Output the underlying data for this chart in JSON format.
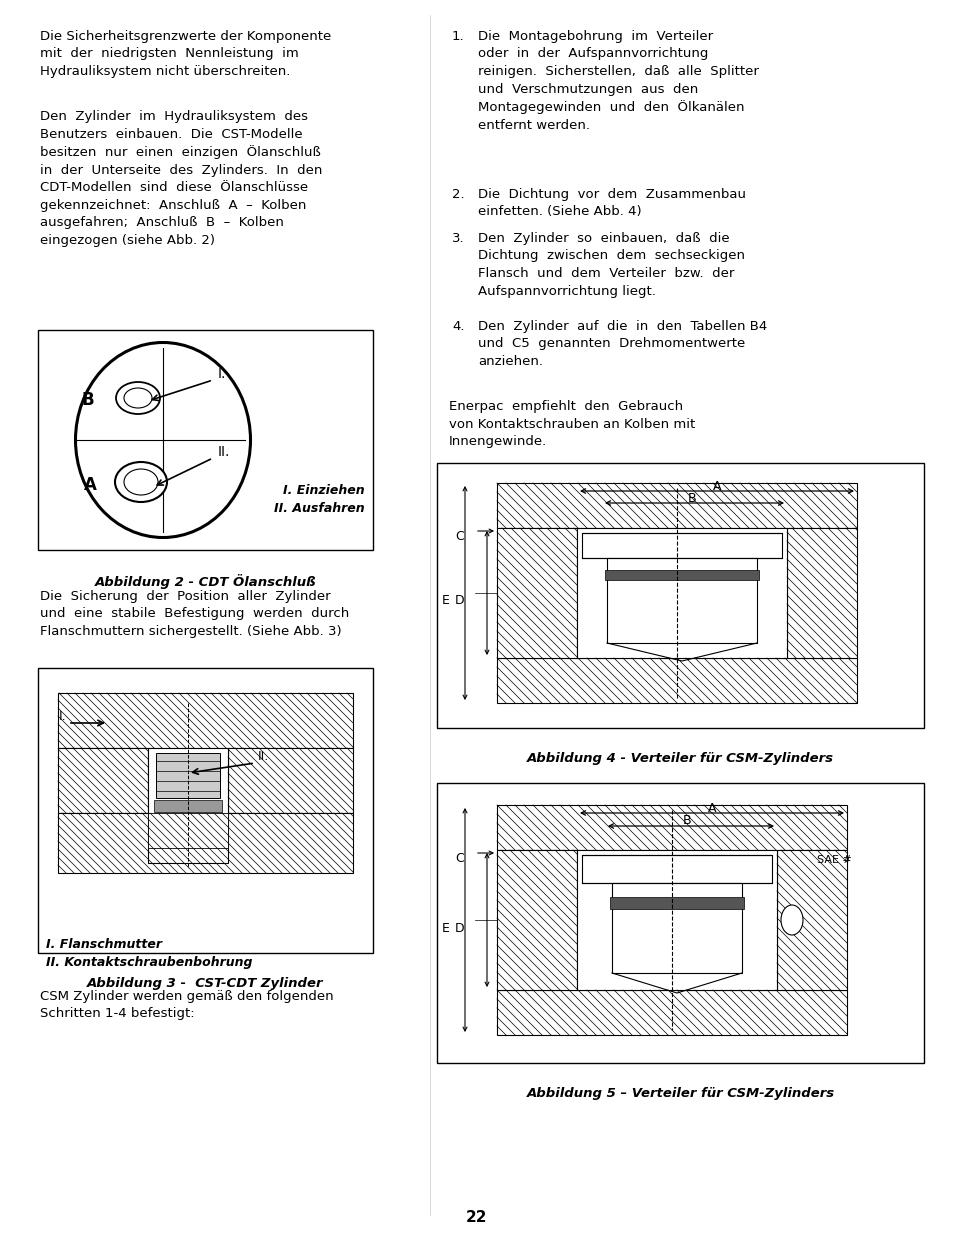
{
  "bg_color": "#ffffff",
  "font_size": 9.5,
  "fig2_caption": "Abbildung 2 - CDT Ölanschluß",
  "fig3_caption": "Abbildung 3 -  CST-CDT Zylinder",
  "fig4_caption": "Abbildung 4 - Verteiler für CSM-Zylinders",
  "fig5_caption": "Abbildung 5 – Verteiler für CSM-Zylinders",
  "page_number": "22"
}
